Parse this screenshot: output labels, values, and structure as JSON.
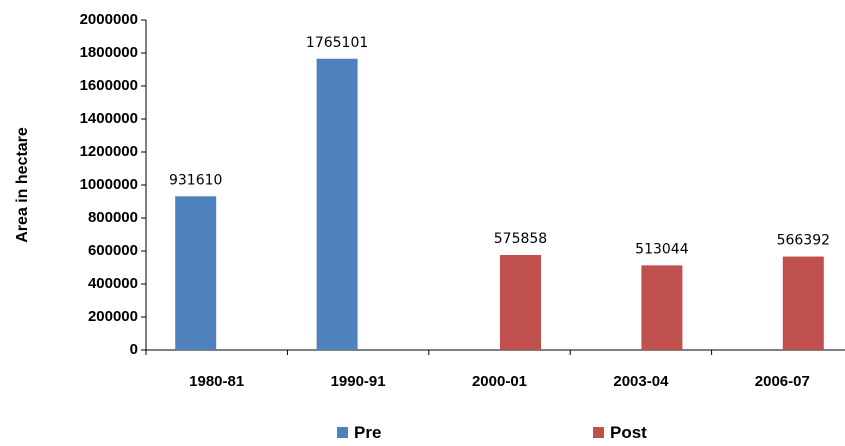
{
  "chart_data": {
    "type": "bar",
    "title": "",
    "xlabel": "",
    "ylabel": "Area in hectare",
    "ylim": [
      0,
      2000000
    ],
    "yticks": [
      0,
      200000,
      400000,
      600000,
      800000,
      1000000,
      1200000,
      1400000,
      1600000,
      1800000,
      2000000
    ],
    "categories": [
      "1980-81",
      "1990-91",
      "2000-01",
      "2003-04",
      "2006-07"
    ],
    "series": [
      {
        "name": "Pre",
        "color": "#4f81bd",
        "values": [
          931610,
          1765101,
          null,
          null,
          null
        ]
      },
      {
        "name": "Post",
        "color": "#c0504d",
        "values": [
          null,
          null,
          575858,
          513044,
          566392
        ]
      }
    ],
    "data_labels": [
      "931610",
      "1765101",
      "575858",
      "513044",
      "566392"
    ],
    "grid": false,
    "legend_position": "bottom"
  }
}
